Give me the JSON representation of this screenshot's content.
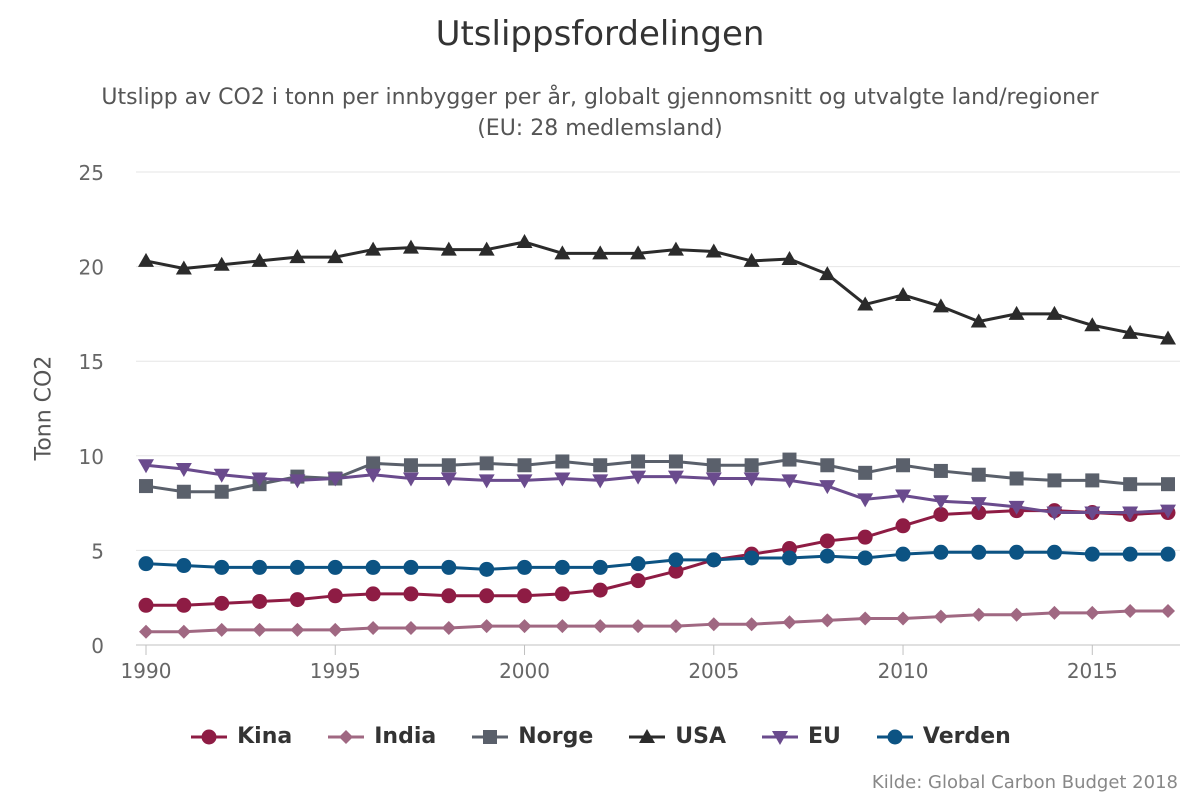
{
  "header": {
    "title": "Utslippsfordelingen",
    "subtitle_line1": "Utslipp av CO2 i tonn per innbygger per år, globalt gjennomsnitt og utvalgte land/regioner",
    "subtitle_line2": "(EU: 28 medlemsland)"
  },
  "credit": "Kilde: Global Carbon Budget 2018",
  "chart_data": {
    "type": "line",
    "title": "Utslippsfordelingen",
    "ylabel": "Tonn CO2",
    "xlabel": "",
    "xlim": [
      1990,
      2017
    ],
    "ylim": [
      0,
      25
    ],
    "x_ticks": [
      1990,
      1995,
      2000,
      2005,
      2010,
      2015
    ],
    "y_ticks": [
      0,
      5,
      10,
      15,
      20,
      25
    ],
    "grid": "horizontal",
    "legend_position": "bottom",
    "x": [
      1990,
      1991,
      1992,
      1993,
      1994,
      1995,
      1996,
      1997,
      1998,
      1999,
      2000,
      2001,
      2002,
      2003,
      2004,
      2005,
      2006,
      2007,
      2008,
      2009,
      2010,
      2011,
      2012,
      2013,
      2014,
      2015,
      2016,
      2017
    ],
    "series": [
      {
        "name": "Kina",
        "color": "#8e1c44",
        "marker": "circle",
        "values": [
          2.1,
          2.1,
          2.2,
          2.3,
          2.4,
          2.6,
          2.7,
          2.7,
          2.6,
          2.6,
          2.6,
          2.7,
          2.9,
          3.4,
          3.9,
          4.5,
          4.8,
          5.1,
          5.5,
          5.7,
          6.3,
          6.9,
          7.0,
          7.1,
          7.1,
          7.0,
          6.9,
          7.0
        ]
      },
      {
        "name": "India",
        "color": "#a06882",
        "marker": "diamond",
        "values": [
          0.7,
          0.7,
          0.8,
          0.8,
          0.8,
          0.8,
          0.9,
          0.9,
          0.9,
          1.0,
          1.0,
          1.0,
          1.0,
          1.0,
          1.0,
          1.1,
          1.1,
          1.2,
          1.3,
          1.4,
          1.4,
          1.5,
          1.6,
          1.6,
          1.7,
          1.7,
          1.8,
          1.8
        ]
      },
      {
        "name": "Norge",
        "color": "#5a606b",
        "marker": "square",
        "values": [
          8.4,
          8.1,
          8.1,
          8.5,
          8.9,
          8.8,
          9.6,
          9.5,
          9.5,
          9.6,
          9.5,
          9.7,
          9.5,
          9.7,
          9.7,
          9.5,
          9.5,
          9.8,
          9.5,
          9.1,
          9.5,
          9.2,
          9.0,
          8.8,
          8.7,
          8.7,
          8.5,
          8.5
        ]
      },
      {
        "name": "USA",
        "color": "#2b2b2b",
        "marker": "triangle-up",
        "values": [
          20.3,
          19.9,
          20.1,
          20.3,
          20.5,
          20.5,
          20.9,
          21.0,
          20.9,
          20.9,
          21.3,
          20.7,
          20.7,
          20.7,
          20.9,
          20.8,
          20.3,
          20.4,
          19.6,
          18.0,
          18.5,
          17.9,
          17.1,
          17.5,
          17.5,
          16.9,
          16.5,
          16.2
        ]
      },
      {
        "name": "EU",
        "color": "#6a4b8d",
        "marker": "triangle-down",
        "values": [
          9.5,
          9.3,
          9.0,
          8.8,
          8.7,
          8.8,
          9.0,
          8.8,
          8.8,
          8.7,
          8.7,
          8.8,
          8.7,
          8.9,
          8.9,
          8.8,
          8.8,
          8.7,
          8.4,
          7.7,
          7.9,
          7.6,
          7.5,
          7.3,
          7.0,
          7.0,
          7.0,
          7.1
        ]
      },
      {
        "name": "Verden",
        "color": "#0c5383",
        "marker": "circle",
        "values": [
          4.3,
          4.2,
          4.1,
          4.1,
          4.1,
          4.1,
          4.1,
          4.1,
          4.1,
          4.0,
          4.1,
          4.1,
          4.1,
          4.3,
          4.5,
          4.5,
          4.6,
          4.6,
          4.7,
          4.6,
          4.8,
          4.9,
          4.9,
          4.9,
          4.9,
          4.8,
          4.8,
          4.8
        ]
      }
    ]
  }
}
